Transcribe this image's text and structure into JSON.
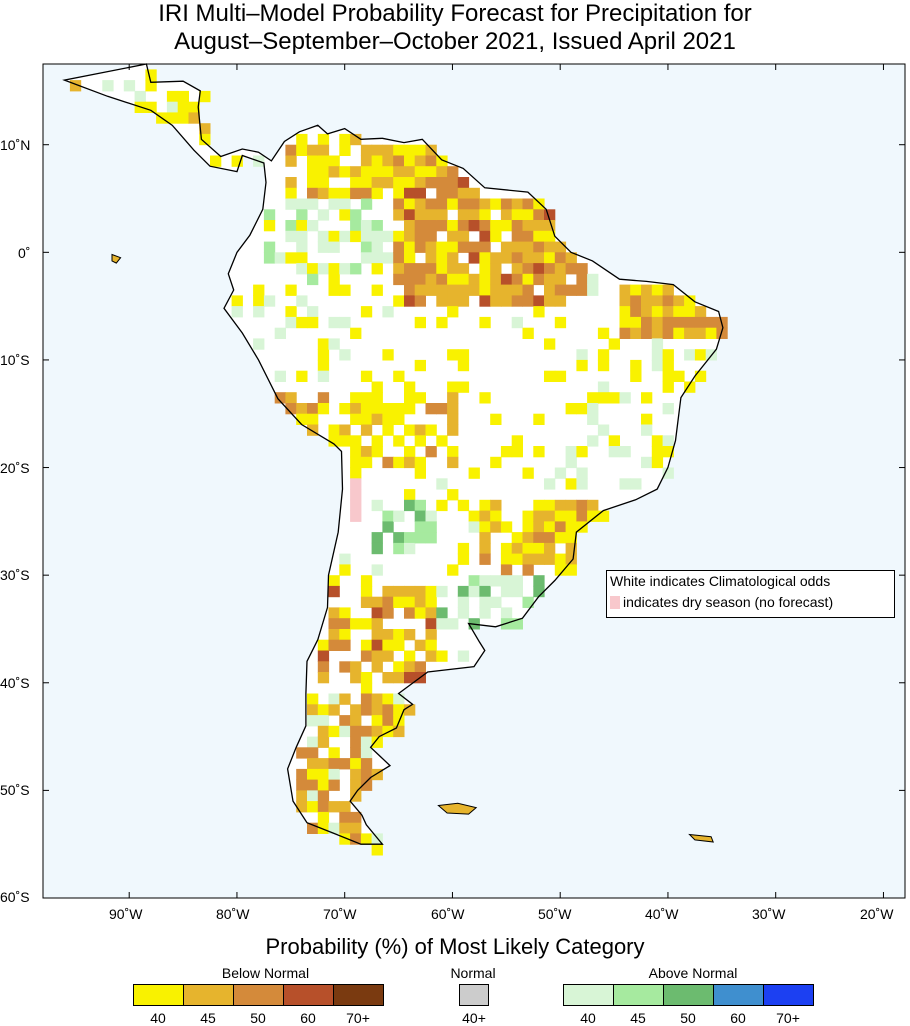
{
  "title_line1": "IRI Multi–Model Probability Forecast for Precipitation for",
  "title_line2": "August–September–October 2021, Issued April 2021",
  "axes": {
    "lat_labels": [
      "10˚N",
      "0˚",
      "10˚S",
      "20˚S",
      "30˚S",
      "40˚S",
      "50˚S",
      "60˚S"
    ],
    "lon_labels": [
      "90˚W",
      "80˚W",
      "70˚W",
      "60˚W",
      "50˚W",
      "40˚W",
      "30˚W",
      "20˚W"
    ]
  },
  "legend": {
    "line1": "White indicates Climatological odds",
    "line2": "indicates dry season (no forecast)"
  },
  "colorbar": {
    "title": "Probability (%) of Most Likely Category",
    "below_label": "Below Normal",
    "normal_label": "Normal",
    "above_label": "Above Normal",
    "below_ticks": [
      "40",
      "45",
      "50",
      "60",
      "70+"
    ],
    "normal_ticks": [
      "40+"
    ],
    "above_ticks": [
      "40",
      "45",
      "50",
      "60",
      "70+"
    ],
    "below_colors": [
      "#f9f200",
      "#e6b42d",
      "#d48a3a",
      "#b7502a",
      "#7a3a10"
    ],
    "normal_colors": [
      "#cccccc"
    ],
    "above_colors": [
      "#d8f5d6",
      "#a6ea9f",
      "#6cbb6f",
      "#3f8fcf",
      "#1c40f2"
    ]
  },
  "colors": {
    "ocean": "#f0f8fd",
    "land": "#ffffff",
    "dry": "#f8c8cc"
  }
}
